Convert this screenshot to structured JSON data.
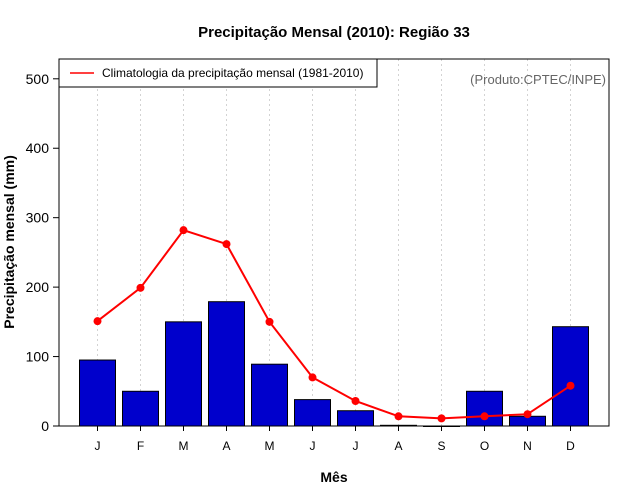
{
  "chart_data": {
    "type": "bar",
    "title": "Precipitação Mensal (2010): Região 33",
    "xlabel": "Mês",
    "ylabel": "Precipitação mensal (mm)",
    "ylim": [
      0,
      520
    ],
    "yticks": [
      0,
      100,
      200,
      300,
      400,
      500
    ],
    "categories": [
      "J",
      "F",
      "M",
      "A",
      "M",
      "J",
      "J",
      "A",
      "S",
      "O",
      "N",
      "D"
    ],
    "series": [
      {
        "name": "Precipitação mensal 2010",
        "kind": "bar",
        "color": "#0000cc",
        "values": [
          95,
          50,
          150,
          179,
          89,
          38,
          22,
          1,
          0,
          50,
          14,
          143
        ]
      },
      {
        "name": "Climatologia da precipitação mensal (1981-2010)",
        "kind": "line",
        "color": "#ff0000",
        "values": [
          151,
          199,
          282,
          262,
          150,
          70,
          36,
          14,
          11,
          14,
          17,
          58
        ]
      }
    ],
    "legend": {
      "position": "top-left",
      "label": "Climatologia da precipitação mensal (1981-2010)"
    },
    "grid": "vertical-dotted",
    "credit": "(Produto:CPTEC/INPE)"
  }
}
